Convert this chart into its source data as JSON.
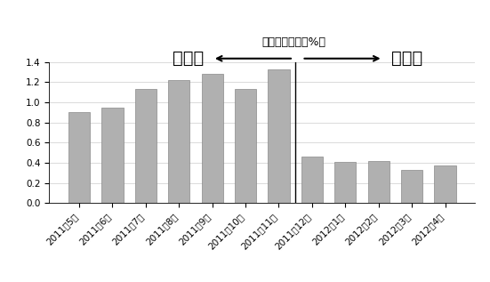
{
  "categories": [
    "2011年5月",
    "2011年6月",
    "2011年7月",
    "2011年8月",
    "2011年9月",
    "2011年10月",
    "2011年11月",
    "2011年12月",
    "2012年1月",
    "2012年2月",
    "2012年3月",
    "2012年4月"
  ],
  "values": [
    0.9,
    0.95,
    1.13,
    1.22,
    1.28,
    1.13,
    1.33,
    0.46,
    0.41,
    0.42,
    0.33,
    0.37
  ],
  "bar_color": "#b0b0b0",
  "bar_edge_color": "#888888",
  "divider_index": 7,
  "ylim": [
    0,
    1.4
  ],
  "yticks": [
    0,
    0.2,
    0.4,
    0.6,
    0.8,
    1.0,
    1.2,
    1.4
  ],
  "ylabel_top": "稳定性封锁率（%）",
  "label_before": "实施前",
  "label_after": "实施后",
  "background_color": "#ffffff",
  "grid_color": "#cccccc",
  "subtitle_fontsize": 9,
  "label_fontsize": 14,
  "tick_fontsize": 7.5
}
